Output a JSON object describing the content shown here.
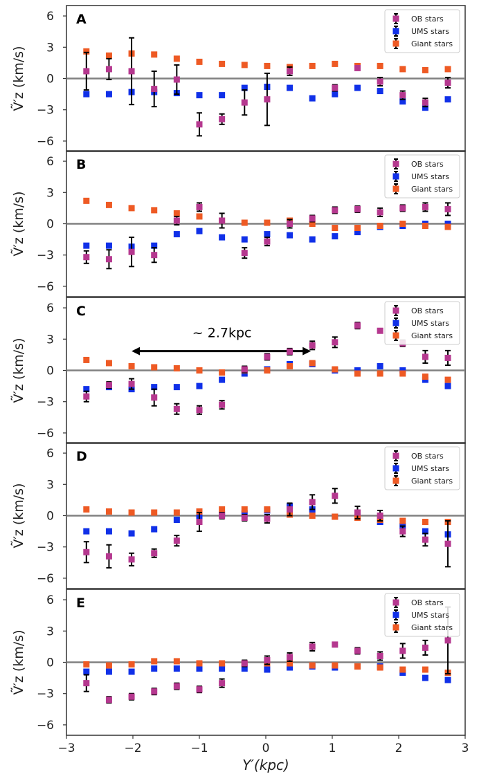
{
  "chart_data": {
    "type": "scatter",
    "xlabel": "Y′(kpc)",
    "ylabel": "Ṽ′z (km/s)",
    "xlim": [
      -3,
      3
    ],
    "ylim": [
      -7,
      7
    ],
    "xticks": [
      -3,
      -2,
      -1,
      0,
      1,
      2,
      3
    ],
    "xtick_labels": [
      "−3",
      "−2",
      "−1",
      "0",
      "1",
      "2",
      "3"
    ],
    "yticks": [
      -6,
      -3,
      0,
      3,
      6
    ],
    "ytick_labels": [
      "−6",
      "−3",
      "0",
      "3",
      "6"
    ],
    "x": [
      -2.7,
      -2.36,
      -2.02,
      -1.68,
      -1.34,
      -1.0,
      -0.66,
      -0.32,
      0.02,
      0.36,
      0.7,
      1.04,
      1.38,
      1.72,
      2.06,
      2.4,
      2.74
    ],
    "series_style": [
      {
        "name": "OB stars",
        "color": "#b5388f"
      },
      {
        "name": "UMS stars",
        "color": "#1030e8"
      },
      {
        "name": "Giant stars",
        "color": "#ee5a24"
      }
    ],
    "panels": [
      {
        "label": "A",
        "legend": [
          "OB stars",
          "UMS stars",
          "Giant stars"
        ],
        "series": [
          {
            "name": "OB stars",
            "values": [
              0.7,
              0.9,
              0.7,
              -1.0,
              -0.1,
              -4.4,
              -3.9,
              -2.3,
              -2.0,
              0.7,
              null,
              -0.9,
              1.0,
              -0.3,
              -1.6,
              -2.3,
              -0.4
            ],
            "errors": [
              1.8,
              1.0,
              3.2,
              1.7,
              1.4,
              1.1,
              0.5,
              1.2,
              2.5,
              0.4,
              null,
              0.3,
              0.2,
              0.4,
              0.4,
              0.4,
              0.5
            ]
          },
          {
            "name": "UMS stars",
            "values": [
              -1.5,
              -1.5,
              -1.3,
              -1.3,
              -1.4,
              -1.6,
              -1.6,
              -0.9,
              -0.8,
              -0.9,
              -1.9,
              -1.5,
              -0.9,
              -1.2,
              -2.2,
              -2.8,
              -2.0
            ],
            "errors": null
          },
          {
            "name": "Giant stars",
            "values": [
              2.6,
              2.2,
              2.4,
              2.3,
              1.9,
              1.6,
              1.4,
              1.3,
              1.2,
              1.1,
              1.2,
              1.4,
              1.2,
              1.2,
              0.9,
              0.8,
              0.9
            ],
            "errors": null
          }
        ]
      },
      {
        "label": "B",
        "legend": [
          "OB stars",
          "UMS stars",
          "Giant stars"
        ],
        "series": [
          {
            "name": "OB stars",
            "values": [
              -3.2,
              -3.4,
              -2.7,
              -3.0,
              0.3,
              1.6,
              0.3,
              -2.8,
              -1.7,
              0.0,
              0.5,
              1.3,
              1.4,
              1.1,
              1.5,
              1.6,
              1.4
            ],
            "errors": [
              0.6,
              0.9,
              1.4,
              0.7,
              0.4,
              0.4,
              0.7,
              0.5,
              0.4,
              0.4,
              0.3,
              0.3,
              0.3,
              0.4,
              0.3,
              0.4,
              0.6
            ]
          },
          {
            "name": "UMS stars",
            "values": [
              -2.1,
              -2.1,
              -2.2,
              -2.1,
              -1.0,
              -0.7,
              -1.3,
              -1.5,
              -1.0,
              -1.1,
              -1.5,
              -1.2,
              -0.8,
              -0.3,
              -0.2,
              0.0,
              0.0
            ],
            "errors": null
          },
          {
            "name": "Giant stars",
            "values": [
              2.2,
              1.8,
              1.5,
              1.3,
              1.0,
              0.7,
              0.3,
              0.1,
              0.1,
              0.3,
              0.0,
              -0.4,
              -0.4,
              -0.2,
              0.0,
              -0.2,
              -0.3
            ],
            "errors": null
          }
        ]
      },
      {
        "label": "C",
        "legend": [
          "OB stars",
          "UMS stars",
          "Giant stars"
        ],
        "annotation": {
          "text": "~ 2.7kpc",
          "x_start": -2.02,
          "x_end": 0.7,
          "y": 1.85
        },
        "series": [
          {
            "name": "OB stars",
            "values": [
              -2.5,
              -1.4,
              -1.3,
              -2.6,
              -3.7,
              -3.8,
              -3.3,
              0.1,
              1.3,
              1.8,
              2.4,
              2.7,
              4.3,
              3.8,
              2.6,
              1.3,
              1.2
            ],
            "errors": [
              0.5,
              0.3,
              0.5,
              0.8,
              0.5,
              0.4,
              0.4,
              0.3,
              0.3,
              0.3,
              0.4,
              0.5,
              0.3,
              0.2,
              0.3,
              0.6,
              0.7
            ]
          },
          {
            "name": "UMS stars",
            "values": [
              -1.8,
              -1.6,
              -1.8,
              -1.6,
              -1.6,
              -1.5,
              -0.9,
              -0.3,
              0.1,
              0.6,
              0.6,
              0.0,
              0.0,
              0.4,
              0.0,
              -0.9,
              -1.5
            ],
            "errors": null
          },
          {
            "name": "Giant stars",
            "values": [
              1.0,
              0.7,
              0.4,
              0.3,
              0.2,
              0.0,
              -0.2,
              0.0,
              0.0,
              0.4,
              0.7,
              0.1,
              -0.3,
              -0.3,
              -0.3,
              -0.6,
              -0.9
            ],
            "errors": null
          }
        ]
      },
      {
        "label": "D",
        "legend": [
          "OB stars",
          "UMS stars",
          "Giant stars"
        ],
        "series": [
          {
            "name": "OB stars",
            "values": [
              -3.5,
              -3.9,
              -4.2,
              -3.6,
              -2.4,
              -0.6,
              0.0,
              -0.2,
              -0.3,
              0.6,
              1.3,
              1.9,
              0.3,
              0.0,
              -1.5,
              -2.3,
              -2.7
            ],
            "errors": [
              1.0,
              1.1,
              0.6,
              0.4,
              0.5,
              0.9,
              0.3,
              0.3,
              0.4,
              0.6,
              0.7,
              0.7,
              0.6,
              0.5,
              0.5,
              0.6,
              2.2
            ]
          },
          {
            "name": "UMS stars",
            "values": [
              -1.5,
              -1.5,
              -1.7,
              -1.3,
              -0.4,
              0.0,
              0.1,
              0.2,
              0.5,
              0.9,
              0.6,
              -0.1,
              -0.1,
              -0.6,
              -1.0,
              -1.5,
              -1.8
            ],
            "errors": null
          },
          {
            "name": "Giant stars",
            "values": [
              0.6,
              0.4,
              0.3,
              0.3,
              0.3,
              0.4,
              0.6,
              0.6,
              0.6,
              0.1,
              0.0,
              -0.1,
              -0.2,
              -0.4,
              -0.5,
              -0.6,
              -0.6
            ],
            "errors": null
          }
        ]
      },
      {
        "label": "E",
        "legend": [
          "OB stars",
          "UMS stars",
          "Giant stars"
        ],
        "series": [
          {
            "name": "OB stars",
            "values": [
              -2.0,
              -3.6,
              -3.3,
              -2.8,
              -2.3,
              -2.6,
              -2.0,
              -0.1,
              0.2,
              0.5,
              1.5,
              1.7,
              1.1,
              0.6,
              1.1,
              1.4,
              2.1
            ],
            "errors": [
              0.8,
              0.3,
              0.3,
              0.3,
              0.3,
              0.3,
              0.4,
              0.3,
              0.4,
              0.4,
              0.4,
              0.2,
              0.3,
              0.4,
              0.7,
              0.7,
              3.2
            ]
          },
          {
            "name": "UMS stars",
            "values": [
              -0.9,
              -0.9,
              -0.9,
              -0.6,
              -0.6,
              -0.6,
              -0.6,
              -0.6,
              -0.7,
              -0.5,
              -0.4,
              -0.5,
              -0.4,
              -0.4,
              -1.0,
              -1.5,
              -1.7
            ],
            "errors": null
          },
          {
            "name": "Giant stars",
            "values": [
              -0.2,
              -0.3,
              -0.2,
              0.1,
              0.1,
              -0.1,
              -0.1,
              -0.1,
              -0.1,
              -0.1,
              -0.3,
              -0.3,
              -0.4,
              -0.5,
              -0.7,
              -0.7,
              -1.0
            ],
            "errors": null
          }
        ]
      }
    ]
  }
}
